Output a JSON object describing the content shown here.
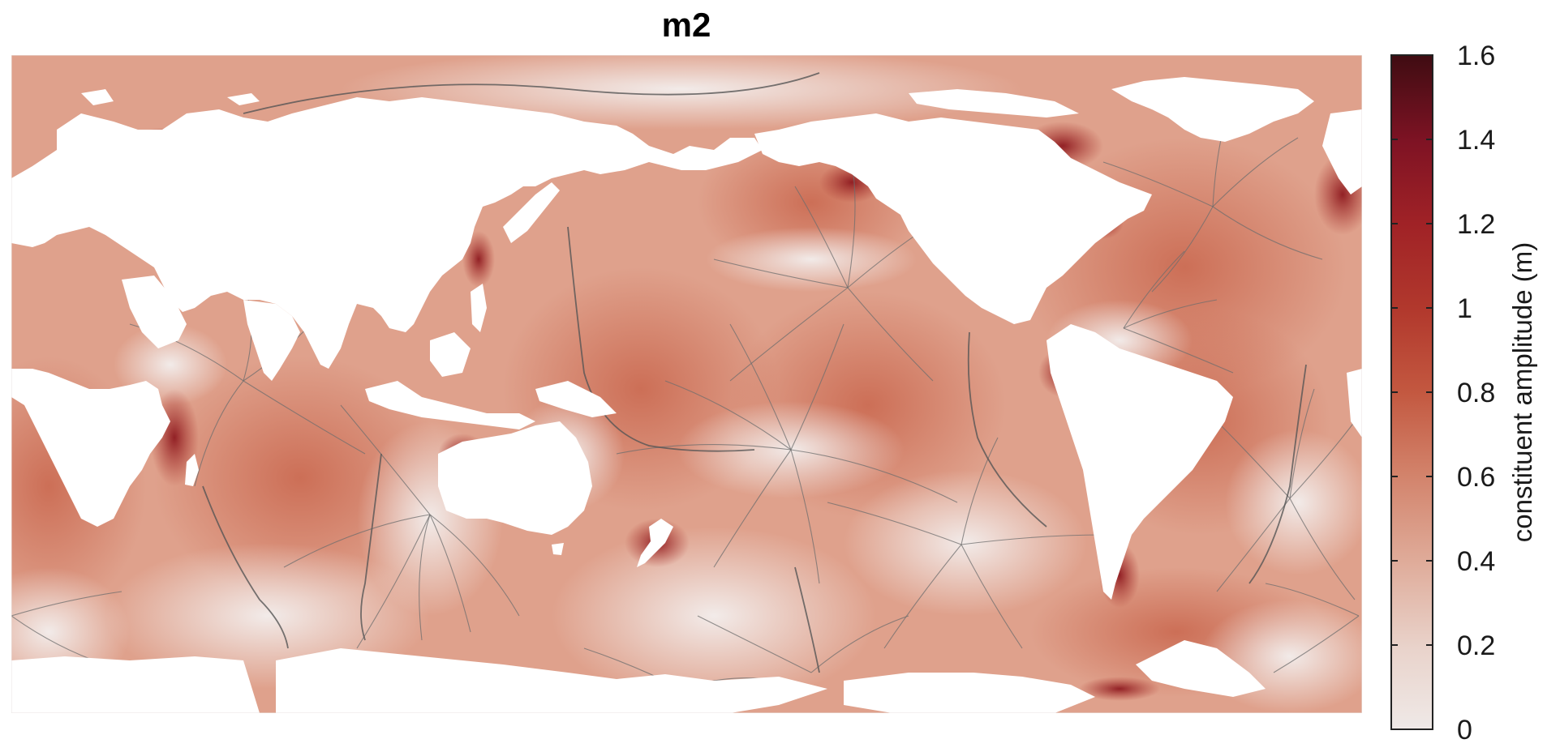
{
  "title": "m2",
  "colorbar": {
    "label": "constituent amplitude (m)",
    "min": 0,
    "max": 1.6,
    "ticks": [
      "0",
      "0.2",
      "0.4",
      "0.6",
      "0.8",
      "1",
      "1.2",
      "1.4",
      "1.6"
    ],
    "colormap": [
      "#efe9e7",
      "#e8cbc2",
      "#dc9f8c",
      "#cc6a53",
      "#b94532",
      "#a52b25",
      "#8b1424",
      "#4a0f14"
    ]
  },
  "map": {
    "ocean_low_color": "#f1ebe9",
    "ocean_mid_color": "#d48a72",
    "ocean_high_color": "#a5281f",
    "land_color": "#ffffff",
    "contour_color": "#6e6e6e"
  }
}
